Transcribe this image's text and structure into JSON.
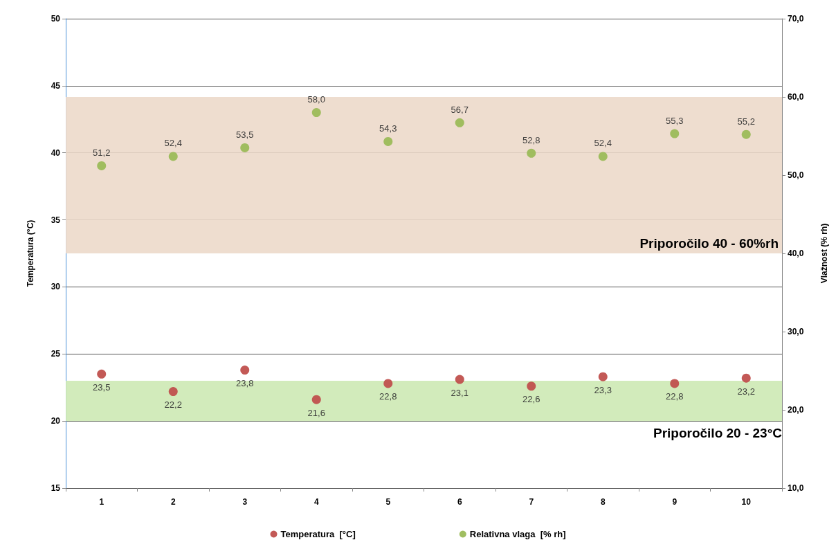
{
  "chart_data": {
    "type": "scatter",
    "ylabel": "Temperatura (°C)",
    "y2label": "Vlažnost (% rh)",
    "categories": [
      "1",
      "2",
      "3",
      "4",
      "5",
      "6",
      "7",
      "8",
      "9",
      "10"
    ],
    "series": [
      {
        "name": "Temperatura  [°C]",
        "color": "#c0504d",
        "values": [
          23.5,
          22.2,
          23.8,
          21.6,
          22.8,
          23.1,
          22.6,
          23.3,
          22.8,
          23.2
        ],
        "value_labels": [
          "23,5",
          "22,2",
          "23,8",
          "21,6",
          "22,8",
          "23,1",
          "22,6",
          "23,3",
          "22,8",
          "23,2"
        ]
      },
      {
        "name": "Relativna vlaga  [% rh]",
        "color": "#9bbb59",
        "axis": "y2",
        "values": [
          51.2,
          52.4,
          53.5,
          58.0,
          54.3,
          56.7,
          52.8,
          52.4,
          55.3,
          55.2
        ],
        "value_labels": [
          "51,2",
          "52,4",
          "53,5",
          "58,0",
          "54,3",
          "56,7",
          "52,8",
          "52,4",
          "55,3",
          "55,2"
        ]
      }
    ],
    "ylim": [
      15,
      50
    ],
    "yticks": [
      15,
      20,
      25,
      30,
      35,
      40,
      45,
      50
    ],
    "y2lim": [
      10,
      70
    ],
    "y2ticks": [
      {
        "value": 10,
        "label": "10,0"
      },
      {
        "value": 20,
        "label": "20,0"
      },
      {
        "value": 30,
        "label": "30,0"
      },
      {
        "value": 40,
        "label": "40,0"
      },
      {
        "value": 50,
        "label": "50,0"
      },
      {
        "value": 60,
        "label": "60,0"
      },
      {
        "value": 70,
        "label": "70,0"
      }
    ],
    "bands": [
      {
        "axis": "y2",
        "from": 40,
        "to": 60,
        "label": "Priporočilo 40 - 60%rh",
        "color": "#ecd9ca"
      },
      {
        "axis": "y",
        "from": 20,
        "to": 23,
        "label": "Priporočilo 20 - 23°C",
        "color": "#cde9b4"
      }
    ],
    "grid": "y",
    "legend": "bottom",
    "marker": "circle"
  }
}
